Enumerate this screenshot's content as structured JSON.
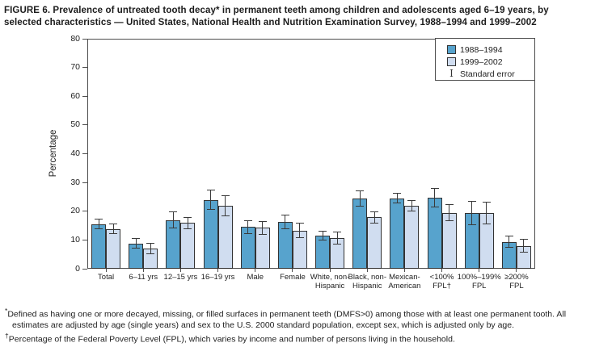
{
  "figure": {
    "title_line1": "FIGURE 6. Prevalence of untreated tooth decay* in permanent teeth among children and adolescents aged 6–19 years, by",
    "title_line2": "selected characteristics — United States, National Health and Nutrition Examination Survey, 1988–1994 and 1999–2002"
  },
  "legend": {
    "series1_label": "1988–1994",
    "series2_label": "1999–2002",
    "se_label": "Standard error",
    "se_glyph": "I"
  },
  "footnotes": [
    {
      "marker": "*",
      "text": "Defined as having one or more decayed, missing, or filled surfaces in permanent teeth (DMFS>0) among those with at least one permanent tooth. All estimates are adjusted by age (single years) and sex to the U.S. 2000 standard population, except sex, which is adjusted only by age."
    },
    {
      "marker": "†",
      "text": "Percentage of the Federal Poverty Level (FPL), which varies by income and number of persons living in the household."
    }
  ],
  "colors": {
    "bar_1988_1994": "#57A3CD",
    "bar_1999_2002": "#D0DDF0",
    "bar_border": "#333333",
    "error_bar": "#333333",
    "axis": "#4d4d4d"
  },
  "chart_data": {
    "type": "bar",
    "title": "Prevalence of untreated tooth decay in permanent teeth among children and adolescents aged 6–19 years, NHANES 1988–1994 and 1999–2002",
    "xlabel": "",
    "ylabel": "Percentage",
    "ylim": [
      0,
      80
    ],
    "yticks": [
      0,
      10,
      20,
      30,
      40,
      50,
      60,
      70,
      80
    ],
    "grid": false,
    "legend_position": "top-right",
    "error_bars": "standard error",
    "categories": [
      "Total",
      "6–11 yrs",
      "12–15 yrs",
      "16–19 yrs",
      "Male",
      "Female",
      "White, non-\nHispanic",
      "Black, non-\nHispanic",
      "Mexican-\nAmerican",
      "<100%\nFPL†",
      "100%–199%\nFPL",
      "≥200%\nFPL"
    ],
    "series": [
      {
        "name": "1988–1994",
        "color": "#57A3CD",
        "values": [
          15.5,
          8.8,
          16.9,
          24.0,
          14.5,
          16.3,
          11.5,
          24.4,
          24.5,
          24.8,
          19.4,
          9.3
        ],
        "standard_errors": [
          1.7,
          1.6,
          2.8,
          3.4,
          2.2,
          2.3,
          1.5,
          2.6,
          1.7,
          3.2,
          4.0,
          2.0
        ]
      },
      {
        "name": "1999–2002",
        "color": "#D0DDF0",
        "values": [
          13.8,
          7.0,
          15.9,
          21.9,
          14.2,
          13.3,
          10.7,
          17.9,
          21.9,
          19.5,
          19.4,
          8.0
        ],
        "standard_errors": [
          1.7,
          1.8,
          1.9,
          3.4,
          2.3,
          2.6,
          2.0,
          2.0,
          1.7,
          2.8,
          3.8,
          2.2
        ]
      }
    ]
  }
}
